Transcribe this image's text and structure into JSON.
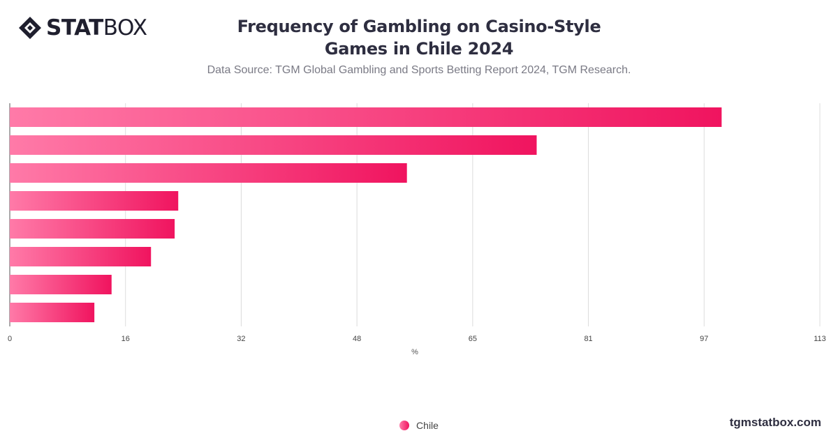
{
  "header": {
    "logo_strong": "STAT",
    "logo_light": "BOX",
    "title": "Frequency of Gambling on Casino-Style Games in Chile 2024",
    "subtitle": "Data Source: TGM Global Gambling and Sports Betting Report 2024, TGM Research."
  },
  "footer": {
    "site": "tgmstatbox.com"
  },
  "colors": {
    "bar_start": "#ff7aa8",
    "bar_end": "#f0145f",
    "grid": "#dcdcdc",
    "text": "#2e2e40"
  },
  "chart_data": {
    "type": "bar",
    "orientation": "horizontal",
    "categories": [
      "",
      "",
      "",
      "",
      "",
      "",
      "",
      ""
    ],
    "series": [
      {
        "name": "Chile",
        "values": [
          99.3,
          73.5,
          55.4,
          23.5,
          23.0,
          19.7,
          14.2,
          11.8
        ]
      }
    ],
    "xlabel": "%",
    "xlim": [
      0,
      113
    ],
    "xticks": [
      "0",
      "16",
      "32",
      "48",
      "65",
      "81",
      "97",
      "113"
    ],
    "grid": true,
    "legend_position": "bottom-center"
  }
}
